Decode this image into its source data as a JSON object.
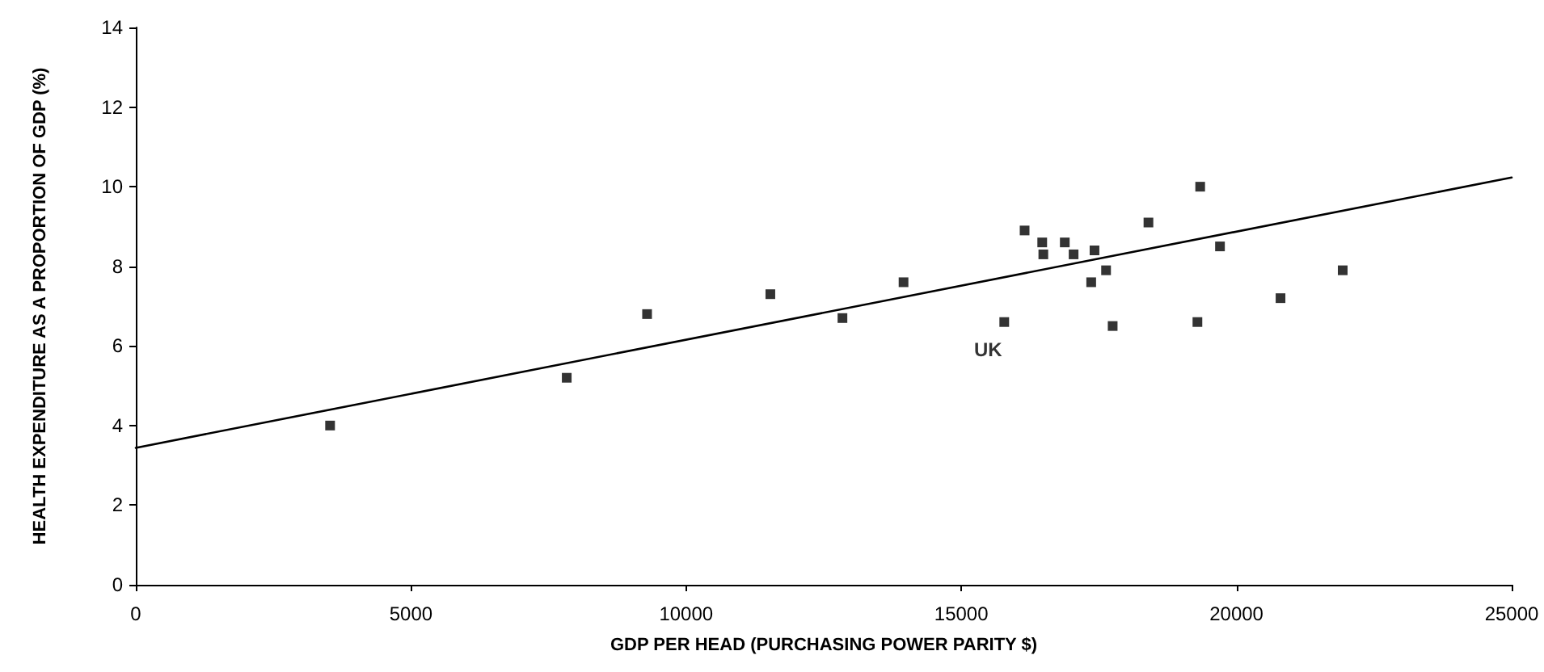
{
  "chart_data": {
    "type": "scatter",
    "xlabel": "GDP PER HEAD (PURCHASING POWER PARITY $)",
    "ylabel": "HEALTH EXPENDITURE AS A PROPORTION OF GDP (%)",
    "xlim": [
      0,
      25000
    ],
    "xticks": [
      0,
      5000,
      10000,
      15000,
      20000,
      25000
    ],
    "ylim": [
      0,
      14
    ],
    "yticks": [
      0,
      2,
      4,
      6,
      8,
      10,
      12,
      14
    ],
    "grid": false,
    "marker": "square",
    "series": [
      {
        "color": "#000000",
        "x": [
          3530,
          7830,
          9290,
          11530,
          12840,
          13950,
          15780,
          16150,
          16470,
          16490,
          16880,
          17040,
          17420,
          17360,
          17630,
          17750,
          18400,
          19340,
          19290,
          19700,
          20800,
          21930
        ],
        "values": [
          4.0,
          5.2,
          6.8,
          7.3,
          6.7,
          7.6,
          6.6,
          8.9,
          8.6,
          8.3,
          8.6,
          8.3,
          8.4,
          7.6,
          7.9,
          6.5,
          9.1,
          10.0,
          6.6,
          8.5,
          7.2,
          7.9
        ]
      },
      {
        "type": "line",
        "color": "#000000",
        "line_style": "solid",
        "marker": "none",
        "x": [
          0,
          25000
        ],
        "values": [
          3.44,
          10.23
        ]
      }
    ],
    "annotations": [
      {
        "text": "UK",
        "x": 15780,
        "y": 6.6
      }
    ]
  }
}
